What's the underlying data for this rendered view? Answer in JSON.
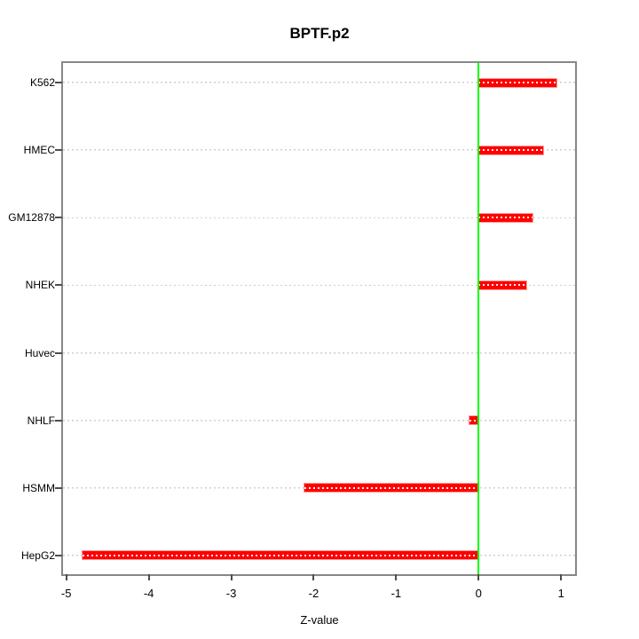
{
  "chart_data": {
    "type": "bar",
    "orientation": "horizontal",
    "title": "BPTF.p2",
    "xlabel": "Z-value",
    "ylabel": "",
    "categories": [
      "K562",
      "HMEC",
      "GM12878",
      "NHEK",
      "Huvec",
      "NHLF",
      "HSMM",
      "HepG2"
    ],
    "values": [
      0.94,
      0.78,
      0.65,
      0.58,
      0,
      -0.11,
      -2.11,
      -4.8
    ],
    "x_ticks": [
      -5,
      -4,
      -3,
      -2,
      -1,
      0,
      1
    ],
    "xlim": [
      -5.04,
      1.17
    ],
    "grid": "dotted-horizontal-per-category",
    "legend": "none",
    "zero_reference_line": 0,
    "colors": {
      "bar_fill": "#ff0000",
      "bar_edge": "#ff9b9b",
      "bar_center_dots": "#ffffff",
      "zero_line": "#00ff00",
      "gridline": "#cfcfcf",
      "frame": "#878787",
      "tick": "#4d4d4d",
      "text": "#000000"
    }
  }
}
